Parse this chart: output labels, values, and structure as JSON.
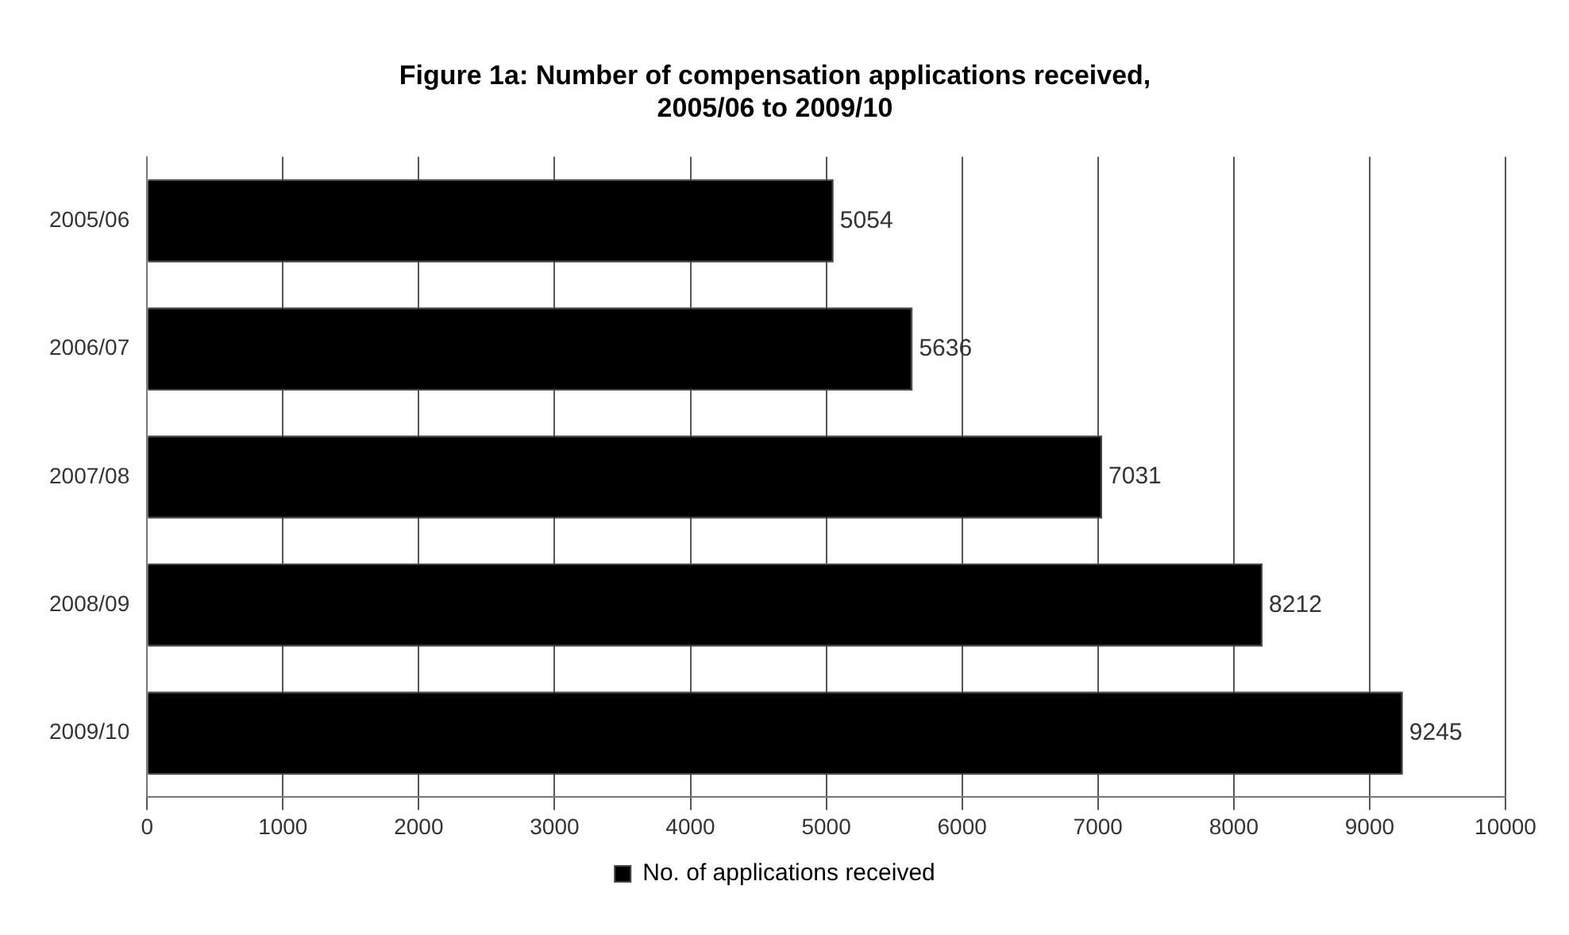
{
  "chart_data": {
    "type": "bar",
    "orientation": "horizontal",
    "title": "Figure 1a: Number of compensation applications received,\n2005/06 to 2009/10",
    "categories": [
      "2005/06",
      "2006/07",
      "2007/08",
      "2008/09",
      "2009/10"
    ],
    "series": [
      {
        "name": "No. of applications received",
        "color": "#000000",
        "values": [
          5054,
          5636,
          7031,
          8212,
          9245
        ]
      }
    ],
    "xlim": [
      0,
      10000
    ],
    "xticks": [
      0,
      1000,
      2000,
      3000,
      4000,
      5000,
      6000,
      7000,
      8000,
      9000,
      10000
    ],
    "grid": "x",
    "legend": "bottom",
    "data_labels": true
  }
}
